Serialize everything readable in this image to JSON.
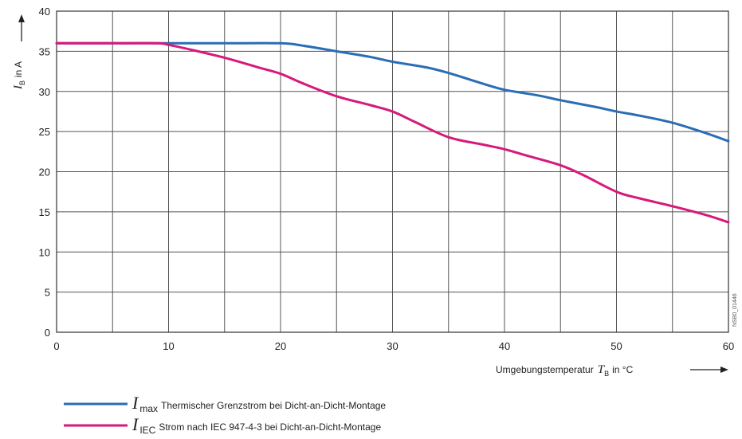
{
  "chart_data": {
    "type": "line",
    "xlim": [
      0,
      60
    ],
    "ylim": [
      0,
      40
    ],
    "x_ticks": [
      0,
      10,
      20,
      30,
      40,
      50,
      60
    ],
    "y_ticks": [
      0,
      5,
      10,
      15,
      20,
      25,
      30,
      35,
      40
    ],
    "grid": true,
    "xlabel": {
      "text": "Umgebungstemperatur",
      "symbol": "T",
      "subscript": "B",
      "unit": "in °C"
    },
    "ylabel": {
      "symbol": "I",
      "subscript": "B",
      "unit": "in A"
    },
    "legend_position": "bottom",
    "series": [
      {
        "symbol": "I",
        "subscript": "max",
        "name": "Thermischer Grenzstrom bei Dicht-an-Dicht-Montage",
        "color": "#2a6db5",
        "x": [
          0,
          5,
          10,
          15,
          20,
          22,
          25,
          28,
          30,
          33,
          35,
          38,
          40,
          43,
          45,
          48,
          50,
          52,
          55,
          58,
          60
        ],
        "y": [
          36,
          36,
          36,
          36,
          36,
          35.7,
          35,
          34.3,
          33.7,
          33,
          32.3,
          31,
          30.2,
          29.5,
          28.9,
          28.1,
          27.5,
          27,
          26.1,
          24.8,
          23.8
        ]
      },
      {
        "symbol": "I",
        "subscript": "IEC",
        "name": "Strom nach IEC 947-4-3 bei Dicht-an-Dicht-Montage",
        "color": "#d6197c",
        "x": [
          0,
          5,
          9,
          10,
          12,
          15,
          18,
          20,
          22,
          25,
          28,
          30,
          32,
          35,
          38,
          40,
          42,
          45,
          47,
          50,
          52,
          55,
          58,
          60
        ],
        "y": [
          36,
          36,
          36,
          35.8,
          35.2,
          34.2,
          33,
          32.2,
          31,
          29.4,
          28.3,
          27.5,
          26.2,
          24.3,
          23.4,
          22.8,
          22,
          20.8,
          19.6,
          17.5,
          16.7,
          15.7,
          14.6,
          13.7
        ]
      }
    ]
  },
  "side_code": "NSB0_01446"
}
